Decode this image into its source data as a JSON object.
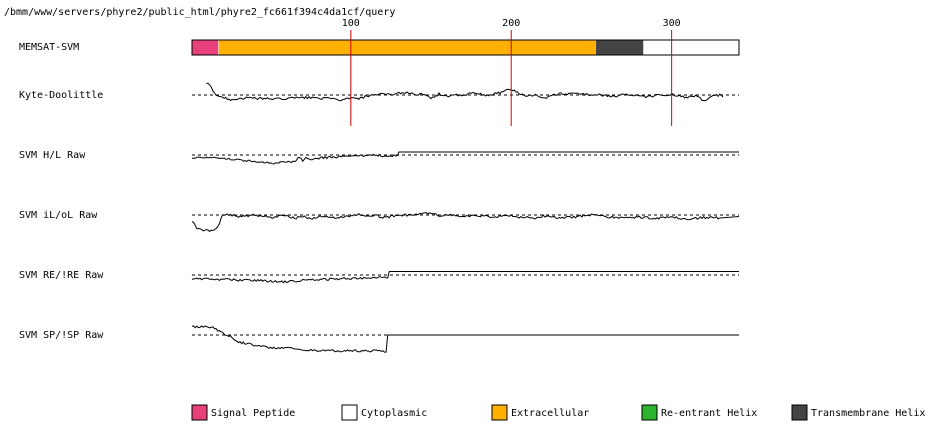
{
  "header": {
    "path": "/bmm/www/servers/phyre2/public_html/phyre2_fc661f394c4da1cf/query"
  },
  "colors": {
    "signal_peptide": "#e8407a",
    "cytoplasmic": "#ffffff",
    "extracellular": "#ffb000",
    "reentrant_helix": "#2db32d",
    "transmembrane_helix": "#444444",
    "marker": "#dd0000",
    "trace": "#000000"
  },
  "chart_data": {
    "type": "line",
    "sequence_length": 342,
    "x_ticks": [
      100,
      200,
      300
    ],
    "tracks": [
      {
        "label": "MEMSAT-SVM",
        "kind": "segments",
        "segments": [
          {
            "class": "signal_peptide",
            "start": 1,
            "end": 17
          },
          {
            "class": "extracellular",
            "start": 18,
            "end": 252
          },
          {
            "class": "transmembrane_helix",
            "start": 253,
            "end": 282
          },
          {
            "class": "cytoplasmic",
            "start": 283,
            "end": 342
          }
        ]
      },
      {
        "label": "Kyte-Doolittle",
        "kind": "trace",
        "end": 332,
        "anchors": [
          [
            10,
            1.15
          ],
          [
            12,
            1.0
          ],
          [
            16,
            0.0
          ],
          [
            20,
            -0.25
          ],
          [
            25,
            -0.45
          ],
          [
            35,
            -0.3
          ],
          [
            45,
            -0.35
          ],
          [
            55,
            -0.4
          ],
          [
            65,
            -0.3
          ],
          [
            75,
            -0.25
          ],
          [
            85,
            -0.35
          ],
          [
            95,
            -0.5
          ],
          [
            100,
            -0.3
          ],
          [
            105,
            -0.4
          ],
          [
            110,
            -0.1
          ],
          [
            115,
            -0.05
          ],
          [
            120,
            0.1
          ],
          [
            125,
            0.05
          ],
          [
            130,
            0.2
          ],
          [
            135,
            0.25
          ],
          [
            140,
            0.1
          ],
          [
            145,
            0.05
          ],
          [
            150,
            -0.35
          ],
          [
            155,
            0.1
          ],
          [
            160,
            -0.1
          ],
          [
            165,
            0.0
          ],
          [
            170,
            -0.1
          ],
          [
            175,
            0.2
          ],
          [
            180,
            0.1
          ],
          [
            185,
            -0.05
          ],
          [
            190,
            0.15
          ],
          [
            195,
            0.3
          ],
          [
            198,
            0.55
          ],
          [
            202,
            0.45
          ],
          [
            206,
            0.1
          ],
          [
            210,
            -0.1
          ],
          [
            215,
            0.05
          ],
          [
            220,
            -0.35
          ],
          [
            225,
            -0.1
          ],
          [
            230,
            0.15
          ],
          [
            235,
            0.1
          ],
          [
            240,
            0.2
          ],
          [
            245,
            0.1
          ],
          [
            250,
            0.0
          ],
          [
            255,
            0.05
          ],
          [
            260,
            -0.15
          ],
          [
            265,
            -0.1
          ],
          [
            270,
            0.1
          ],
          [
            275,
            -0.05
          ],
          [
            280,
            -0.1
          ],
          [
            285,
            -0.2
          ],
          [
            290,
            -0.05
          ],
          [
            295,
            0.0
          ],
          [
            300,
            0.05
          ],
          [
            305,
            -0.15
          ],
          [
            310,
            -0.25
          ],
          [
            315,
            -0.1
          ],
          [
            320,
            -0.6
          ],
          [
            325,
            -0.1
          ],
          [
            330,
            0.0
          ],
          [
            332,
            -0.2
          ]
        ]
      },
      {
        "label": "SVM H/L Raw",
        "kind": "trace",
        "end": 342,
        "anchors": [
          [
            1,
            -0.3
          ],
          [
            10,
            -0.2
          ],
          [
            20,
            -0.3
          ],
          [
            30,
            -0.5
          ],
          [
            40,
            -0.65
          ],
          [
            50,
            -0.8
          ],
          [
            60,
            -0.75
          ],
          [
            65,
            -0.6
          ],
          [
            68,
            -0.2
          ],
          [
            70,
            -0.55
          ],
          [
            72,
            -0.3
          ],
          [
            75,
            -0.5
          ],
          [
            80,
            -0.3
          ],
          [
            90,
            -0.2
          ],
          [
            100,
            -0.15
          ],
          [
            110,
            -0.05
          ],
          [
            120,
            -0.05
          ],
          [
            129,
            -0.05
          ],
          [
            130,
            0.3
          ],
          [
            342,
            0.3
          ]
        ]
      },
      {
        "label": "SVM iL/oL Raw",
        "kind": "trace",
        "end": 342,
        "anchors": [
          [
            1,
            -0.6
          ],
          [
            4,
            -1.3
          ],
          [
            8,
            -1.5
          ],
          [
            12,
            -1.6
          ],
          [
            16,
            -1.3
          ],
          [
            18,
            -0.8
          ],
          [
            20,
            -0.1
          ],
          [
            25,
            0.05
          ],
          [
            30,
            -0.15
          ],
          [
            40,
            0.0
          ],
          [
            50,
            -0.25
          ],
          [
            60,
            0.0
          ],
          [
            65,
            -0.35
          ],
          [
            70,
            -0.1
          ],
          [
            75,
            -0.4
          ],
          [
            80,
            -0.15
          ],
          [
            90,
            -0.3
          ],
          [
            100,
            -0.05
          ],
          [
            105,
            0.05
          ],
          [
            110,
            -0.2
          ],
          [
            115,
            -0.05
          ],
          [
            120,
            -0.25
          ],
          [
            130,
            -0.05
          ],
          [
            140,
            0.05
          ],
          [
            150,
            0.2
          ],
          [
            155,
            -0.1
          ],
          [
            160,
            0.05
          ],
          [
            170,
            -0.15
          ],
          [
            180,
            -0.05
          ],
          [
            190,
            -0.2
          ],
          [
            200,
            -0.05
          ],
          [
            205,
            -0.3
          ],
          [
            210,
            -0.1
          ],
          [
            215,
            -0.4
          ],
          [
            220,
            -0.1
          ],
          [
            230,
            -0.3
          ],
          [
            240,
            -0.2
          ],
          [
            250,
            0.05
          ],
          [
            255,
            0.0
          ],
          [
            260,
            -0.2
          ],
          [
            270,
            -0.3
          ],
          [
            280,
            -0.2
          ],
          [
            290,
            -0.35
          ],
          [
            300,
            -0.2
          ],
          [
            310,
            -0.45
          ],
          [
            320,
            -0.25
          ],
          [
            330,
            -0.3
          ],
          [
            342,
            -0.15
          ]
        ]
      },
      {
        "label": "SVM RE/!RE Raw",
        "kind": "trace",
        "end": 342,
        "anchors": [
          [
            1,
            -0.35
          ],
          [
            10,
            -0.4
          ],
          [
            20,
            -0.45
          ],
          [
            30,
            -0.5
          ],
          [
            40,
            -0.55
          ],
          [
            50,
            -0.6
          ],
          [
            60,
            -0.7
          ],
          [
            70,
            -0.55
          ],
          [
            80,
            -0.45
          ],
          [
            90,
            -0.4
          ],
          [
            100,
            -0.35
          ],
          [
            110,
            -0.3
          ],
          [
            120,
            -0.25
          ],
          [
            123,
            -0.3
          ],
          [
            124,
            0.35
          ],
          [
            342,
            0.35
          ]
        ]
      },
      {
        "label": "SVM SP/!SP Raw",
        "kind": "trace",
        "end": 342,
        "anchors": [
          [
            1,
            0.8
          ],
          [
            10,
            0.9
          ],
          [
            15,
            0.7
          ],
          [
            20,
            0.2
          ],
          [
            25,
            -0.1
          ],
          [
            30,
            -0.7
          ],
          [
            40,
            -1.0
          ],
          [
            50,
            -1.3
          ],
          [
            60,
            -1.25
          ],
          [
            70,
            -1.5
          ],
          [
            80,
            -1.55
          ],
          [
            90,
            -1.6
          ],
          [
            100,
            -1.55
          ],
          [
            110,
            -1.6
          ],
          [
            120,
            -1.55
          ],
          [
            122,
            -1.7
          ],
          [
            123,
            0.0
          ],
          [
            342,
            0.0
          ]
        ]
      }
    ]
  },
  "legend": {
    "items": [
      {
        "key": "signal_peptide",
        "label": "Signal Peptide"
      },
      {
        "key": "cytoplasmic",
        "label": "Cytoplasmic"
      },
      {
        "key": "extracellular",
        "label": "Extracellular"
      },
      {
        "key": "reentrant_helix",
        "label": "Re-entrant Helix"
      },
      {
        "key": "transmembrane_helix",
        "label": "Transmembrane Helix"
      }
    ]
  }
}
